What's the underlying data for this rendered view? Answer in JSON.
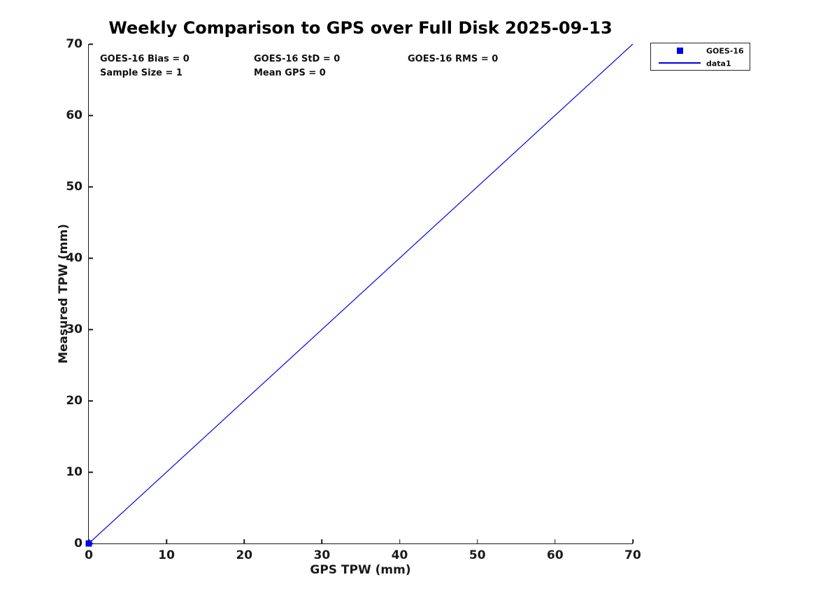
{
  "title": "Weekly Comparison to GPS over Full Disk 2025-09-13",
  "axes": {
    "xlabel": "GPS TPW (mm)",
    "ylabel": "Measured TPW (mm)"
  },
  "stats": {
    "bias": "GOES-16 Bias = 0",
    "std": "GOES-16 StD = 0",
    "rms": "GOES-16 RMS = 0",
    "sample_size": "Sample Size = 1",
    "mean_gps": "Mean GPS = 0"
  },
  "legend": {
    "entries": [
      {
        "label": "GOES-16",
        "swatch": "filled-square-marker"
      },
      {
        "label": "data1",
        "swatch": "solid-line"
      }
    ]
  },
  "colors": {
    "accent_blue": "#0000ee",
    "axis": "#1a1a1a",
    "title_text": "#000000",
    "background": "#ffffff"
  },
  "chart_data": {
    "type": "line",
    "title": "Weekly Comparison to GPS over Full Disk 2025-09-13",
    "xlabel": "GPS TPW (mm)",
    "ylabel": "Measured TPW (mm)",
    "xlim": [
      0,
      70
    ],
    "ylim": [
      0,
      70
    ],
    "xticks": [
      0,
      10,
      20,
      30,
      40,
      50,
      60,
      70
    ],
    "yticks": [
      0,
      10,
      20,
      30,
      40,
      50,
      60,
      70
    ],
    "grid": false,
    "legend_position": "outside-top-right",
    "series": [
      {
        "name": "GOES-16",
        "type": "scatter",
        "marker": "filled-square",
        "color": "#0000ee",
        "points": [
          [
            0,
            0
          ]
        ]
      },
      {
        "name": "data1",
        "type": "line",
        "color": "#0000ee",
        "line_width": 1.2,
        "points": [
          [
            0,
            0
          ],
          [
            70,
            70
          ]
        ]
      }
    ],
    "annotations": [
      {
        "text": "GOES-16 Bias = 0",
        "x": 1.5,
        "y": 67.8
      },
      {
        "text": "GOES-16 StD = 0",
        "x": 21.3,
        "y": 67.8
      },
      {
        "text": "GOES-16 RMS = 0",
        "x": 41.1,
        "y": 67.8
      },
      {
        "text": "Sample Size = 1",
        "x": 1.5,
        "y": 65.9
      },
      {
        "text": "Mean GPS = 0",
        "x": 21.3,
        "y": 65.9
      }
    ]
  }
}
